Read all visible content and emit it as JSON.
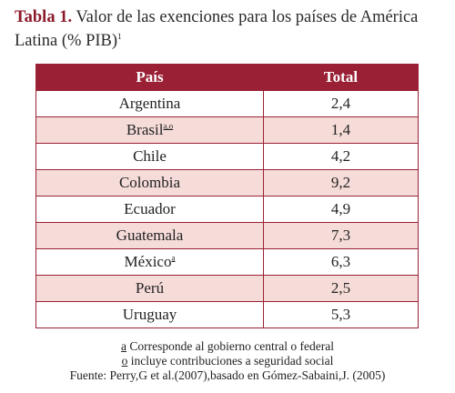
{
  "title": {
    "label": "Tabla 1.",
    "text": " Valor de las exenciones para los países de América Latina (% PIB)",
    "superscript": "1"
  },
  "table": {
    "headers": [
      "País",
      "Total"
    ],
    "rows": [
      {
        "country": "Argentina",
        "sup": "",
        "total": "2,4"
      },
      {
        "country": "Brasil",
        "sup": "a,o",
        "total": "1,4"
      },
      {
        "country": "Chile",
        "sup": "",
        "total": "4,2"
      },
      {
        "country": "Colombia",
        "sup": "",
        "total": "9,2"
      },
      {
        "country": "Ecuador",
        "sup": "",
        "total": "4,9"
      },
      {
        "country": "Guatemala",
        "sup": "",
        "total": "7,3"
      },
      {
        "country": "México",
        "sup": "a",
        "total": "6,3"
      },
      {
        "country": "Perú",
        "sup": "",
        "total": "2,5"
      },
      {
        "country": "Uruguay",
        "sup": "",
        "total": "5,3"
      }
    ]
  },
  "notes": {
    "a_mark": "a",
    "a_text": " Corresponde al gobierno central o federal",
    "o_mark": "o",
    "o_text": " incluye contribuciones a seguridad social",
    "source": "Fuente: Perry,G et al.(2007),basado en Gómez-Sabaini,J. (2005)"
  },
  "colors": {
    "header_bg": "#9a2135",
    "alt_row_bg": "#f6dcd9",
    "title_label": "#8b1a2b"
  }
}
